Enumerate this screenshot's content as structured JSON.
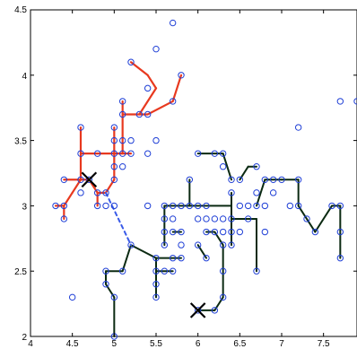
{
  "chart_data": {
    "type": "scatter",
    "title": "",
    "xlabel": "",
    "ylabel": "",
    "xlim": [
      4,
      7.9
    ],
    "ylim": [
      2,
      4.5
    ],
    "grid": false,
    "x_ticks": [
      4,
      4.5,
      5,
      5.5,
      6,
      6.5,
      7,
      7.5
    ],
    "x_tick_labels": [
      "4",
      "4.5",
      "5",
      "5.5",
      "6",
      "6.5",
      "7",
      "7.5"
    ],
    "y_ticks": [
      2,
      2.5,
      3,
      3.5,
      4,
      4.5
    ],
    "y_tick_labels": [
      "2",
      "2.5",
      "3",
      "3.5",
      "4",
      "4.5"
    ],
    "colors": {
      "points": "#1f3fd6",
      "cluster_red": "#e8391f",
      "cluster_dark": "#0b2a12",
      "link": "#3a5be8",
      "centroid": "#000000"
    },
    "points": [
      [
        4.3,
        3.0
      ],
      [
        4.4,
        2.9
      ],
      [
        4.4,
        3.0
      ],
      [
        4.4,
        3.2
      ],
      [
        4.5,
        2.3
      ],
      [
        4.6,
        3.1
      ],
      [
        4.6,
        3.2
      ],
      [
        4.6,
        3.4
      ],
      [
        4.6,
        3.6
      ],
      [
        4.7,
        3.2
      ],
      [
        4.8,
        3.0
      ],
      [
        4.8,
        3.1
      ],
      [
        4.8,
        3.4
      ],
      [
        4.9,
        3.0
      ],
      [
        4.9,
        3.1
      ],
      [
        4.9,
        2.4
      ],
      [
        4.9,
        2.5
      ],
      [
        5.0,
        2.0
      ],
      [
        5.0,
        2.3
      ],
      [
        5.0,
        3.0
      ],
      [
        5.0,
        3.2
      ],
      [
        5.0,
        3.3
      ],
      [
        5.0,
        3.4
      ],
      [
        5.0,
        3.5
      ],
      [
        5.0,
        3.6
      ],
      [
        5.1,
        2.5
      ],
      [
        5.1,
        3.3
      ],
      [
        5.1,
        3.4
      ],
      [
        5.1,
        3.5
      ],
      [
        5.1,
        3.7
      ],
      [
        5.1,
        3.8
      ],
      [
        5.2,
        2.7
      ],
      [
        5.2,
        3.4
      ],
      [
        5.2,
        3.5
      ],
      [
        5.2,
        4.1
      ],
      [
        5.3,
        3.7
      ],
      [
        5.4,
        3.0
      ],
      [
        5.4,
        3.4
      ],
      [
        5.4,
        3.7
      ],
      [
        5.4,
        3.9
      ],
      [
        5.5,
        2.3
      ],
      [
        5.5,
        2.4
      ],
      [
        5.5,
        2.5
      ],
      [
        5.5,
        2.6
      ],
      [
        5.5,
        3.5
      ],
      [
        5.5,
        4.2
      ],
      [
        5.6,
        2.5
      ],
      [
        5.6,
        2.7
      ],
      [
        5.6,
        2.8
      ],
      [
        5.6,
        2.9
      ],
      [
        5.6,
        3.0
      ],
      [
        5.7,
        2.5
      ],
      [
        5.7,
        2.6
      ],
      [
        5.7,
        2.8
      ],
      [
        5.7,
        2.9
      ],
      [
        5.7,
        3.0
      ],
      [
        5.7,
        3.8
      ],
      [
        5.7,
        4.4
      ],
      [
        5.8,
        2.6
      ],
      [
        5.8,
        2.7
      ],
      [
        5.8,
        2.8
      ],
      [
        5.8,
        3.0
      ],
      [
        5.8,
        4.0
      ],
      [
        5.9,
        3.0
      ],
      [
        5.9,
        3.2
      ],
      [
        6.0,
        2.2
      ],
      [
        6.0,
        2.7
      ],
      [
        6.0,
        2.9
      ],
      [
        6.0,
        3.0
      ],
      [
        6.0,
        3.4
      ],
      [
        6.1,
        2.6
      ],
      [
        6.1,
        2.8
      ],
      [
        6.1,
        2.9
      ],
      [
        6.1,
        3.0
      ],
      [
        6.2,
        2.2
      ],
      [
        6.2,
        2.8
      ],
      [
        6.2,
        2.9
      ],
      [
        6.2,
        3.4
      ],
      [
        6.3,
        2.3
      ],
      [
        6.3,
        2.5
      ],
      [
        6.3,
        2.7
      ],
      [
        6.3,
        2.8
      ],
      [
        6.3,
        2.9
      ],
      [
        6.3,
        3.3
      ],
      [
        6.3,
        3.4
      ],
      [
        6.4,
        2.7
      ],
      [
        6.4,
        2.8
      ],
      [
        6.4,
        2.9
      ],
      [
        6.4,
        3.1
      ],
      [
        6.4,
        3.2
      ],
      [
        6.5,
        2.8
      ],
      [
        6.5,
        3.0
      ],
      [
        6.5,
        3.2
      ],
      [
        6.6,
        2.9
      ],
      [
        6.6,
        3.0
      ],
      [
        6.7,
        2.5
      ],
      [
        6.7,
        3.0
      ],
      [
        6.7,
        3.1
      ],
      [
        6.7,
        3.3
      ],
      [
        6.8,
        2.8
      ],
      [
        6.8,
        3.0
      ],
      [
        6.8,
        3.2
      ],
      [
        6.9,
        3.1
      ],
      [
        6.9,
        3.2
      ],
      [
        7.0,
        3.2
      ],
      [
        7.1,
        3.0
      ],
      [
        7.2,
        3.0
      ],
      [
        7.2,
        3.2
      ],
      [
        7.2,
        3.6
      ],
      [
        7.3,
        2.9
      ],
      [
        7.4,
        2.8
      ],
      [
        7.6,
        3.0
      ],
      [
        7.7,
        2.6
      ],
      [
        7.7,
        2.8
      ],
      [
        7.7,
        3.0
      ],
      [
        7.7,
        3.8
      ],
      [
        7.9,
        3.8
      ]
    ],
    "centroids": [
      [
        4.7,
        3.2
      ],
      [
        6.0,
        2.2
      ]
    ],
    "red_segments": [
      [
        [
          4.3,
          3.0
        ],
        [
          4.4,
          3.0
        ]
      ],
      [
        [
          4.4,
          3.0
        ],
        [
          4.4,
          2.9
        ]
      ],
      [
        [
          4.4,
          3.0
        ],
        [
          4.5,
          3.1
        ]
      ],
      [
        [
          4.5,
          3.1
        ],
        [
          4.6,
          3.2
        ]
      ],
      [
        [
          4.4,
          3.2
        ],
        [
          4.6,
          3.2
        ]
      ],
      [
        [
          4.6,
          3.2
        ],
        [
          4.7,
          3.2
        ]
      ],
      [
        [
          4.7,
          3.2
        ],
        [
          4.8,
          3.1
        ]
      ],
      [
        [
          4.8,
          3.1
        ],
        [
          4.9,
          3.1
        ]
      ],
      [
        [
          4.8,
          3.1
        ],
        [
          4.8,
          3.0
        ]
      ],
      [
        [
          4.9,
          3.1
        ],
        [
          5.0,
          3.2
        ]
      ],
      [
        [
          5.0,
          3.2
        ],
        [
          5.0,
          3.6
        ]
      ],
      [
        [
          4.6,
          3.2
        ],
        [
          4.6,
          3.6
        ]
      ],
      [
        [
          4.6,
          3.4
        ],
        [
          4.8,
          3.4
        ]
      ],
      [
        [
          4.8,
          3.4
        ],
        [
          5.0,
          3.4
        ]
      ],
      [
        [
          5.0,
          3.4
        ],
        [
          5.2,
          3.4
        ]
      ],
      [
        [
          5.1,
          3.4
        ],
        [
          5.1,
          3.8
        ]
      ],
      [
        [
          5.1,
          3.7
        ],
        [
          5.3,
          3.7
        ]
      ],
      [
        [
          5.3,
          3.7
        ],
        [
          5.4,
          3.7
        ]
      ],
      [
        [
          5.4,
          3.7
        ],
        [
          5.7,
          3.8
        ]
      ],
      [
        [
          5.7,
          3.8
        ],
        [
          5.8,
          4.0
        ]
      ],
      [
        [
          5.3,
          3.7
        ],
        [
          5.5,
          3.9
        ]
      ],
      [
        [
          5.5,
          3.9
        ],
        [
          5.4,
          4.0
        ]
      ],
      [
        [
          5.4,
          4.0
        ],
        [
          5.2,
          4.1
        ]
      ]
    ],
    "dark_segments": [
      [
        [
          5.0,
          2.0
        ],
        [
          5.0,
          2.3
        ]
      ],
      [
        [
          5.0,
          2.3
        ],
        [
          4.9,
          2.4
        ]
      ],
      [
        [
          4.9,
          2.4
        ],
        [
          4.9,
          2.5
        ]
      ],
      [
        [
          4.9,
          2.5
        ],
        [
          5.1,
          2.5
        ]
      ],
      [
        [
          5.1,
          2.5
        ],
        [
          5.2,
          2.7
        ]
      ],
      [
        [
          5.2,
          2.7
        ],
        [
          5.5,
          2.6
        ]
      ],
      [
        [
          5.5,
          2.6
        ],
        [
          5.5,
          2.3
        ]
      ],
      [
        [
          5.5,
          2.5
        ],
        [
          5.7,
          2.5
        ]
      ],
      [
        [
          5.5,
          2.6
        ],
        [
          5.8,
          2.6
        ]
      ],
      [
        [
          5.6,
          2.7
        ],
        [
          5.6,
          3.0
        ]
      ],
      [
        [
          5.6,
          3.0
        ],
        [
          6.0,
          3.0
        ]
      ],
      [
        [
          5.7,
          2.8
        ],
        [
          5.8,
          2.8
        ]
      ],
      [
        [
          5.9,
          3.0
        ],
        [
          5.9,
          3.2
        ]
      ],
      [
        [
          6.0,
          3.0
        ],
        [
          6.4,
          3.0
        ]
      ],
      [
        [
          6.0,
          2.7
        ],
        [
          6.1,
          2.6
        ]
      ],
      [
        [
          6.1,
          2.8
        ],
        [
          6.2,
          2.8
        ]
      ],
      [
        [
          6.2,
          2.8
        ],
        [
          6.3,
          2.7
        ]
      ],
      [
        [
          6.3,
          2.7
        ],
        [
          6.3,
          2.3
        ]
      ],
      [
        [
          6.3,
          2.3
        ],
        [
          6.2,
          2.2
        ]
      ],
      [
        [
          6.2,
          2.2
        ],
        [
          6.0,
          2.2
        ]
      ],
      [
        [
          6.0,
          3.4
        ],
        [
          6.3,
          3.4
        ]
      ],
      [
        [
          6.3,
          3.4
        ],
        [
          6.4,
          3.2
        ]
      ],
      [
        [
          6.4,
          3.1
        ],
        [
          6.4,
          2.7
        ]
      ],
      [
        [
          6.4,
          2.9
        ],
        [
          6.7,
          2.9
        ]
      ],
      [
        [
          6.7,
          2.9
        ],
        [
          6.7,
          2.5
        ]
      ],
      [
        [
          6.7,
          3.0
        ],
        [
          6.8,
          3.2
        ]
      ],
      [
        [
          6.8,
          3.2
        ],
        [
          7.0,
          3.2
        ]
      ],
      [
        [
          7.0,
          3.2
        ],
        [
          7.2,
          3.2
        ]
      ],
      [
        [
          7.2,
          3.2
        ],
        [
          7.2,
          3.0
        ]
      ],
      [
        [
          7.2,
          3.0
        ],
        [
          7.4,
          2.8
        ]
      ],
      [
        [
          7.4,
          2.8
        ],
        [
          7.6,
          3.0
        ]
      ],
      [
        [
          7.6,
          3.0
        ],
        [
          7.7,
          3.0
        ]
      ],
      [
        [
          7.7,
          3.0
        ],
        [
          7.7,
          2.6
        ]
      ],
      [
        [
          6.5,
          3.2
        ],
        [
          6.6,
          3.3
        ]
      ],
      [
        [
          6.6,
          3.3
        ],
        [
          6.7,
          3.3
        ]
      ]
    ],
    "link_segments": [
      [
        [
          4.9,
          3.1
        ],
        [
          5.2,
          2.7
        ]
      ]
    ]
  }
}
